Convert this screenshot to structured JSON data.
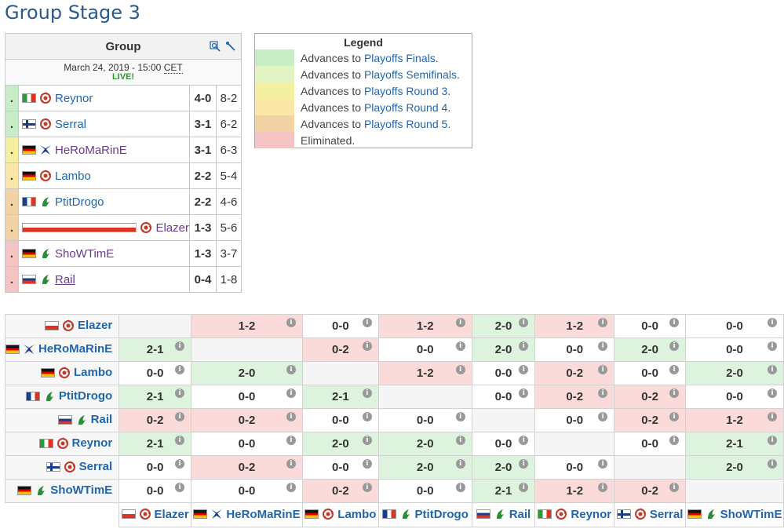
{
  "page": {
    "title": "Group Stage 3"
  },
  "group": {
    "header": "Group",
    "date": "March 24, 2019 - 15:00",
    "tz": "CET",
    "live": "LIVE!",
    "rows": [
      {
        "dot": ".",
        "color": "c-green",
        "flag": "it",
        "race": "zerg",
        "name": "Reynor",
        "score": "4-0",
        "maps": "8-2"
      },
      {
        "dot": ".",
        "color": "c-green",
        "flag": "fi",
        "race": "zerg",
        "name": "Serral",
        "score": "3-1",
        "maps": "6-2"
      },
      {
        "dot": ".",
        "color": "c-yellow",
        "flag": "de",
        "race": "protoss",
        "name": "HeRoMaRinE",
        "score": "3-1",
        "maps": "6-3"
      },
      {
        "dot": ".",
        "color": "c-lorange",
        "flag": "de",
        "race": "zerg",
        "name": "Lambo",
        "score": "2-2",
        "maps": "5-4"
      },
      {
        "dot": ".",
        "color": "c-orange",
        "flag": "fr",
        "race": "terran",
        "name": "PtitDrogo",
        "score": "2-2",
        "maps": "4-6"
      },
      {
        "dot": ".",
        "color": "c-orange",
        "flag": "pl",
        "race": "zerg",
        "name": "Elazer",
        "score": "1-3",
        "maps": "5-6"
      },
      {
        "dot": ".",
        "color": "c-red",
        "flag": "de",
        "race": "terran",
        "name": "ShoWTimE",
        "score": "1-3",
        "maps": "3-7"
      },
      {
        "dot": ".",
        "color": "c-red",
        "flag": "ru",
        "race": "terran",
        "name": "Rail",
        "score": "0-4",
        "maps": "1-8"
      }
    ]
  },
  "legend": {
    "title": "Legend",
    "items": [
      {
        "color": "#c6edc6",
        "prefix": "Advances to ",
        "link": "Playoffs Finals",
        "suffix": "."
      },
      {
        "color": "#e2f3c4",
        "prefix": "Advances to ",
        "link": "Playoffs Semifinals",
        "suffix": "."
      },
      {
        "color": "#f3f0a0",
        "prefix": "Advances to ",
        "link": "Playoffs Round 3",
        "suffix": "."
      },
      {
        "color": "#fbe7a8",
        "prefix": "Advances to ",
        "link": "Playoffs Round 4",
        "suffix": "."
      },
      {
        "color": "#f2d4a4",
        "prefix": "Advances to ",
        "link": "Playoffs Round 5",
        "suffix": "."
      },
      {
        "color": "#f4c3c3",
        "prefix": "",
        "link": "",
        "suffix": "Eliminated."
      }
    ]
  },
  "cross": {
    "players": [
      {
        "name": "Elazer",
        "flag": "pl",
        "race": "zerg"
      },
      {
        "name": "HeRoMaRinE",
        "flag": "de",
        "race": "protoss"
      },
      {
        "name": "Lambo",
        "flag": "de",
        "race": "zerg"
      },
      {
        "name": "PtitDrogo",
        "flag": "fr",
        "race": "terran"
      },
      {
        "name": "Rail",
        "flag": "ru",
        "race": "terran"
      },
      {
        "name": "Reynor",
        "flag": "it",
        "race": "zerg"
      },
      {
        "name": "Serral",
        "flag": "fi",
        "race": "zerg"
      },
      {
        "name": "ShoWTimE",
        "flag": "de",
        "race": "terran"
      }
    ],
    "results": [
      [
        "",
        "1-2",
        "0-0",
        "1-2",
        "2-0",
        "1-2",
        "0-0",
        "0-0"
      ],
      [
        "2-1",
        "",
        "0-2",
        "0-0",
        "2-0",
        "0-0",
        "2-0",
        "0-0"
      ],
      [
        "0-0",
        "2-0",
        "",
        "1-2",
        "0-0",
        "0-2",
        "0-0",
        "2-0"
      ],
      [
        "2-1",
        "0-0",
        "2-1",
        "",
        "0-0",
        "0-2",
        "0-2",
        "0-0"
      ],
      [
        "0-2",
        "0-2",
        "0-0",
        "0-0",
        "",
        "0-0",
        "0-2",
        "1-2"
      ],
      [
        "2-1",
        "0-0",
        "2-0",
        "2-0",
        "0-0",
        "",
        "0-0",
        "2-1"
      ],
      [
        "0-0",
        "0-2",
        "0-0",
        "2-0",
        "2-0",
        "0-0",
        "",
        "2-0"
      ],
      [
        "0-0",
        "0-0",
        "0-2",
        "0-0",
        "2-1",
        "1-2",
        "0-2",
        ""
      ]
    ],
    "info_glyph": "i"
  }
}
